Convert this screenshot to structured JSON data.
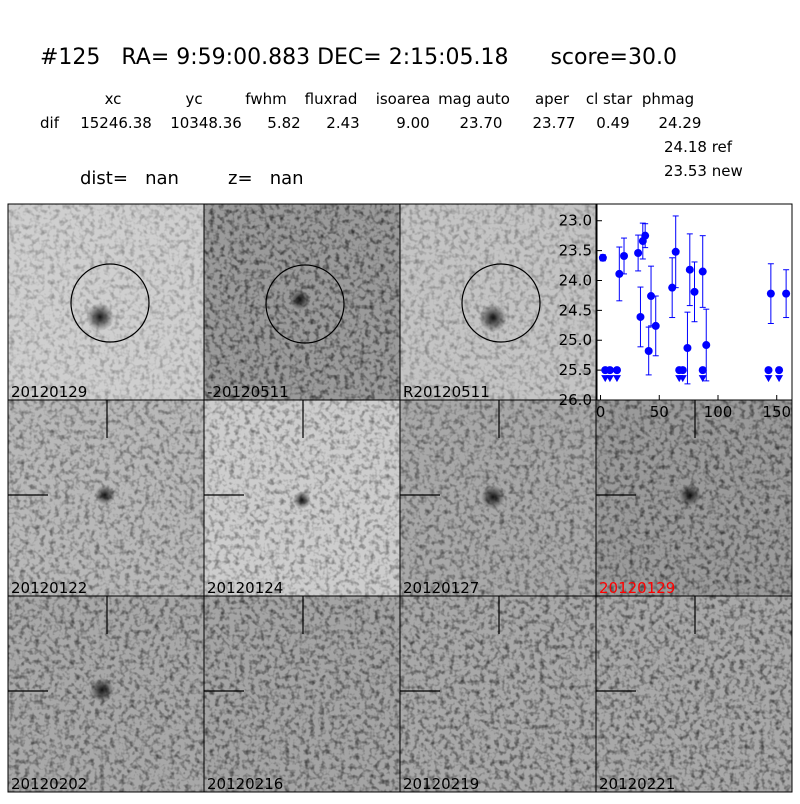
{
  "header": {
    "title": "#125   RA= 9:59:00.883 DEC= 2:15:05.18      score=30.0",
    "table": {
      "columns": [
        "xc",
        "yc",
        "fwhm",
        "fluxrad",
        "isoarea",
        "mag auto",
        "aper",
        "cl star",
        "phmag"
      ],
      "row_label": "dif",
      "row": [
        "15246.38",
        "10348.36",
        "5.82",
        "2.43",
        "9.00",
        "23.70",
        "23.77",
        "0.49",
        "24.29"
      ],
      "extra": [
        "24.18 ref",
        "23.53 new"
      ]
    },
    "dist": "dist=   nan",
    "z": "z=   nan"
  },
  "stamps": [
    {
      "label": "20120129"
    },
    {
      "label": "-20120511"
    },
    {
      "label": "R20120511"
    },
    {
      "label": "20120122"
    },
    {
      "label": "20120124"
    },
    {
      "label": "20120127"
    },
    {
      "label": "20120129",
      "color": "#ff0000"
    },
    {
      "label": "20120202"
    },
    {
      "label": "20120216"
    },
    {
      "label": "20120219"
    },
    {
      "label": "20120221"
    }
  ],
  "chart_data": {
    "type": "scatter",
    "color": "#0000ff",
    "y_inverted": true,
    "xlim": [
      -3,
      163
    ],
    "ylim": [
      22.72,
      26.0
    ],
    "xticks": [
      0,
      50,
      100,
      150
    ],
    "yticks": [
      {
        "value": 23,
        "label": "23.0"
      },
      {
        "value": 23.5,
        "label": "23.5"
      },
      {
        "value": 24,
        "label": "24.0"
      },
      {
        "value": 24.5,
        "label": "24.5"
      },
      {
        "value": 25,
        "label": "25.0"
      },
      {
        "value": 25.5,
        "label": "25.5"
      },
      {
        "value": 26,
        "label": "26.0"
      }
    ],
    "points": {
      "x": [
        2,
        16,
        20,
        32,
        34,
        36,
        38,
        41,
        43,
        47,
        61,
        64,
        74,
        76,
        80,
        87,
        90,
        145,
        158
      ],
      "values": [
        23.62,
        23.89,
        23.59,
        23.54,
        24.61,
        23.34,
        23.25,
        25.18,
        24.26,
        24.76,
        24.12,
        23.52,
        25.13,
        23.82,
        24.19,
        23.85,
        25.08,
        24.22,
        24.22
      ],
      "errors": [
        0.05,
        0.45,
        0.3,
        0.3,
        0.5,
        0.3,
        0.2,
        0.4,
        0.5,
        0.5,
        0.5,
        0.6,
        0.6,
        0.6,
        0.5,
        0.6,
        0.6,
        0.5,
        0.4
      ]
    },
    "limits": {
      "x": [
        4,
        8,
        14,
        67,
        70,
        87,
        143,
        152
      ],
      "values": [
        25.5,
        25.5,
        25.5,
        25.5,
        25.5,
        25.5,
        25.5,
        25.5
      ]
    }
  }
}
